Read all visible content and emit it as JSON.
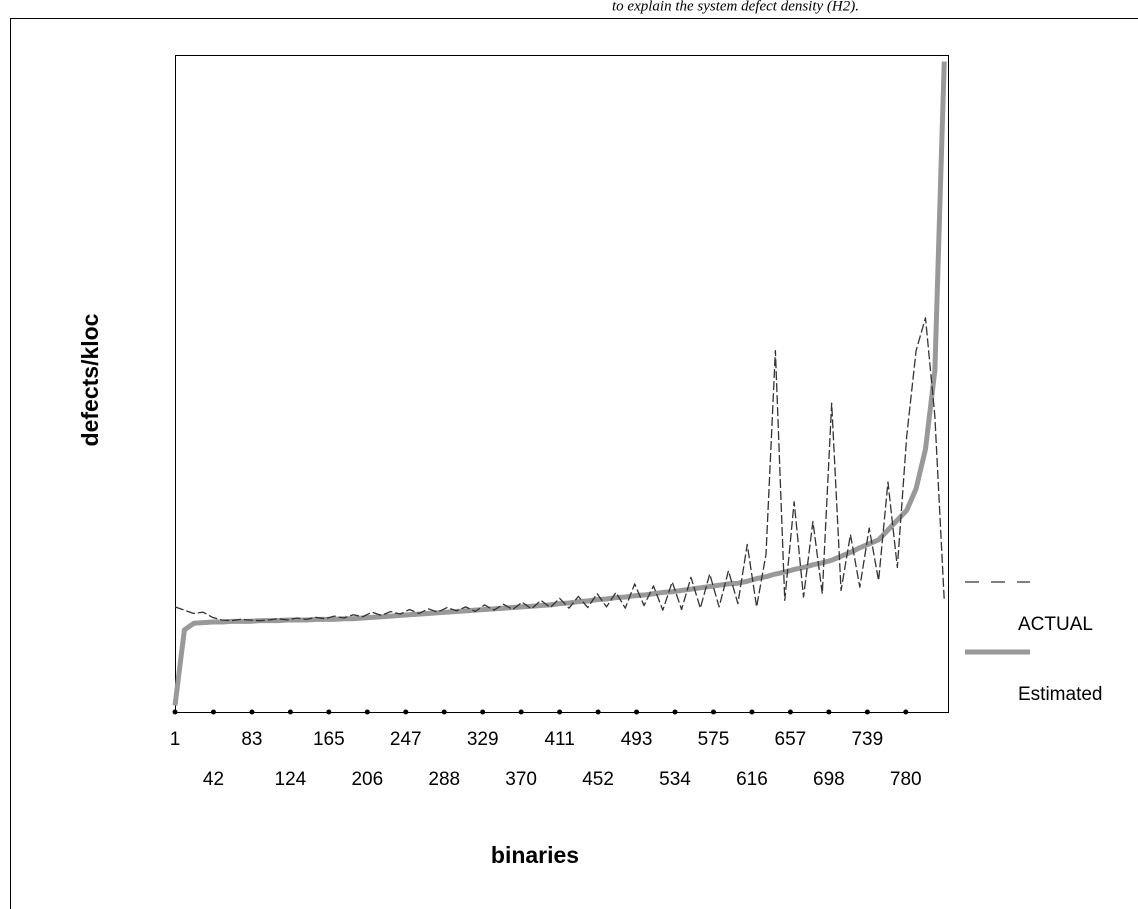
{
  "caption": "to explain the system defect density (H2).",
  "chart_data": {
    "type": "line",
    "xlabel": "binaries",
    "ylabel": "defects/kloc",
    "x": [
      1,
      11,
      21,
      31,
      41,
      51,
      61,
      71,
      81,
      91,
      101,
      111,
      121,
      131,
      141,
      151,
      161,
      171,
      181,
      191,
      201,
      211,
      221,
      231,
      241,
      251,
      261,
      271,
      281,
      291,
      301,
      311,
      321,
      331,
      341,
      351,
      361,
      371,
      381,
      391,
      401,
      411,
      421,
      431,
      441,
      451,
      461,
      471,
      481,
      491,
      501,
      511,
      521,
      531,
      541,
      551,
      561,
      571,
      581,
      591,
      601,
      611,
      621,
      631,
      641,
      651,
      661,
      671,
      681,
      691,
      701,
      711,
      721,
      731,
      741,
      751,
      761,
      771,
      781,
      791,
      801,
      811,
      821
    ],
    "series": [
      {
        "name": "ACTUAL",
        "color": "#333333",
        "dashed": true,
        "values": [
          16,
          15.5,
          15,
          15.2,
          14.4,
          14,
          13.9,
          14.1,
          14,
          13.9,
          14,
          14.2,
          14,
          14.3,
          14.1,
          14.4,
          14.2,
          14.6,
          14.3,
          14.8,
          14.5,
          15.2,
          14.7,
          15.3,
          14.9,
          15.6,
          15,
          15.7,
          15.2,
          15.9,
          15.4,
          16,
          15.3,
          16.3,
          15.5,
          16.4,
          15.6,
          16.7,
          15.7,
          17,
          15.9,
          17.3,
          15.8,
          17.6,
          15.9,
          18,
          16,
          18.2,
          15.8,
          19.5,
          16.2,
          19.2,
          15.5,
          19.8,
          15.6,
          20.5,
          15.8,
          21,
          16,
          21.5,
          16.5,
          25.5,
          16,
          24,
          55,
          17,
          32,
          17.5,
          29,
          18,
          47,
          18.5,
          27,
          19,
          28,
          20,
          35,
          22,
          42,
          55,
          60,
          45,
          17
        ]
      },
      {
        "name": "Estimated",
        "color": "#999999",
        "dashed": false,
        "values": [
          1,
          12.5,
          13.5,
          13.6,
          13.7,
          13.7,
          13.8,
          13.8,
          13.8,
          13.9,
          13.9,
          13.9,
          14,
          14,
          14,
          14.1,
          14.1,
          14.1,
          14.2,
          14.2,
          14.3,
          14.4,
          14.5,
          14.6,
          14.7,
          14.8,
          14.9,
          15,
          15.1,
          15.2,
          15.3,
          15.4,
          15.5,
          15.6,
          15.7,
          15.8,
          15.9,
          16,
          16.1,
          16.2,
          16.3,
          16.5,
          16.6,
          16.8,
          16.9,
          17.1,
          17.2,
          17.4,
          17.5,
          17.7,
          17.8,
          18,
          18.2,
          18.3,
          18.5,
          18.7,
          18.9,
          19.1,
          19.3,
          19.5,
          19.6,
          19.9,
          20.3,
          20.6,
          21,
          21.3,
          21.7,
          22,
          22.4,
          22.7,
          23.1,
          23.7,
          24.3,
          25,
          25.6,
          26.2,
          27.7,
          29.2,
          30.7,
          34,
          40,
          52,
          99
        ]
      }
    ],
    "xlim": [
      1,
      825
    ],
    "ylim": [
      0,
      100
    ],
    "xticks": [
      1,
      42,
      83,
      124,
      165,
      206,
      247,
      288,
      329,
      370,
      411,
      452,
      493,
      534,
      575,
      616,
      657,
      698,
      739,
      780
    ],
    "legend": "right",
    "grid": false
  }
}
